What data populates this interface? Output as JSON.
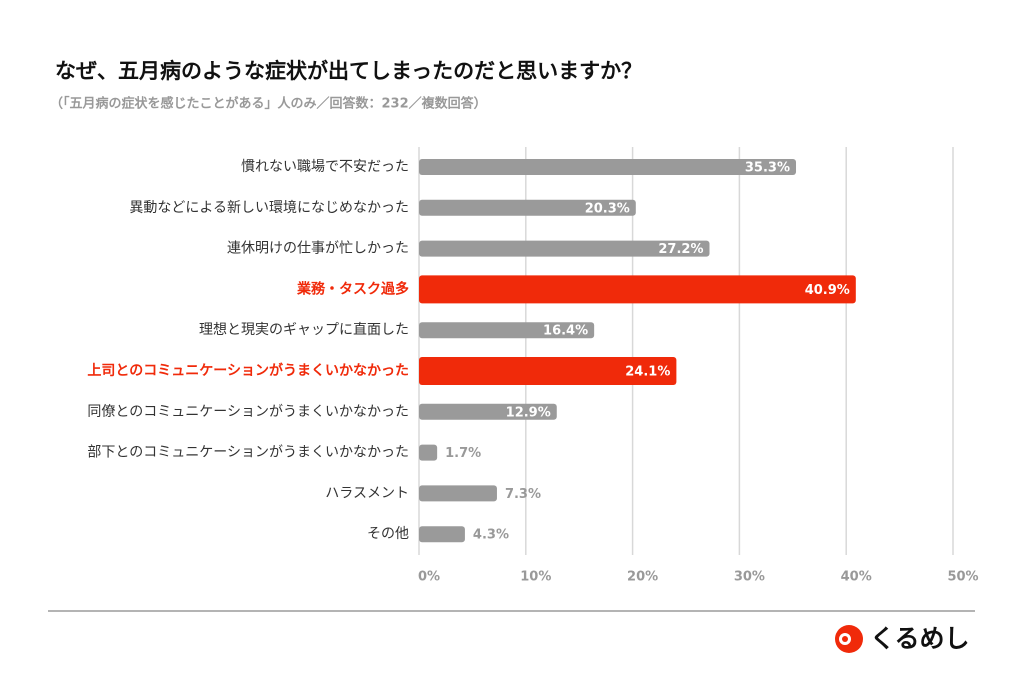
{
  "chart_data": {
    "type": "barh",
    "title": "なぜ、五月病のような症状が出てしまったのだと思いますか？",
    "subtitle": "（「五月病の症状を感じたことがある」人のみ／回答数：232／複数回答）",
    "categories": [
      "慣れない職場で不安だった",
      "異動などによる新しい環境になじめなかった",
      "連休明けの仕事が忙しかった",
      "業務・タスク過多",
      "理想と現実のギャップに直面した",
      "上司とのコミュニケーションがうまくいかなかった",
      "同僚とのコミュニケーションがうまくいかなかった",
      "部下とのコミュニケーションがうまくいかなかった",
      "ハラスメント",
      "その他"
    ],
    "values": [
      35.3,
      20.3,
      27.2,
      40.9,
      16.4,
      24.1,
      12.9,
      1.7,
      7.3,
      4.3
    ],
    "value_labels": [
      "35.3%",
      "20.3%",
      "27.2%",
      "40.9%",
      "16.4%",
      "24.1%",
      "12.9%",
      "1.7%",
      "7.3%",
      "4.3%"
    ],
    "color": "#9a9a9a",
    "colors": [
      "#9a9a9a",
      "#9a9a9a",
      "#9a9a9a",
      "#f02a0a",
      "#9a9a9a",
      "#f02a0a",
      "#9a9a9a",
      "#9a9a9a",
      "#9a9a9a",
      "#9a9a9a"
    ],
    "xlim": [
      0,
      50
    ],
    "xticks": [
      {
        "value": 0,
        "label": "0%"
      },
      {
        "value": 10,
        "label": "10%"
      },
      {
        "value": 20,
        "label": "20%"
      },
      {
        "value": 30,
        "label": "30%"
      },
      {
        "value": 40,
        "label": "40%"
      },
      {
        "value": 50,
        "label": "50%"
      }
    ],
    "grid": true
  },
  "logo": {
    "text": "くるめし"
  }
}
